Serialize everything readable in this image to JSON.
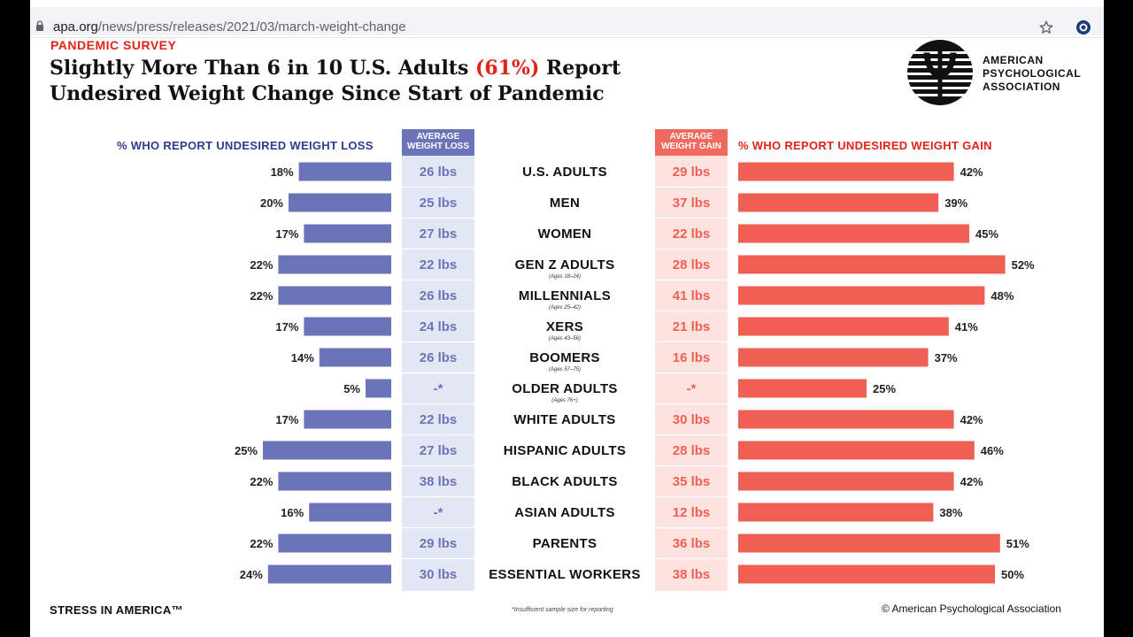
{
  "browser": {
    "url_domain": "apa.org",
    "url_path": "/news/press/releases/2021/03/march-weight-change"
  },
  "header": {
    "kicker": "PANDEMIC SURVEY",
    "title_line1_pre": "Slightly More Than 6 in 10 U.S. Adults ",
    "title_line1_highlight": "(61%)",
    "title_line1_post": " Report",
    "title_line2": "Undesired Weight Change Since Start of Pandemic"
  },
  "logo": {
    "line1": "AMERICAN",
    "line2": "PSYCHOLOGICAL",
    "line3": "ASSOCIATION"
  },
  "columns": {
    "loss_header": "% WHO REPORT UNDESIRED WEIGHT LOSS",
    "avg_loss_header_line1": "AVERAGE",
    "avg_loss_header_line2": "WEIGHT LOSS",
    "avg_gain_header_line1": "AVERAGE",
    "avg_gain_header_line2": "WEIGHT GAIN",
    "gain_header": "% WHO REPORT UNDESIRED WEIGHT GAIN"
  },
  "colors": {
    "loss_bar": "#6b74b8",
    "gain_bar": "#ef5f54",
    "loss_text": "#6b74b8",
    "gain_text": "#ef5f54",
    "accent_red": "#e2231a",
    "navy": "#2f3b8f"
  },
  "chart_data": {
    "type": "bar",
    "title": "Slightly More Than 6 in 10 U.S. Adults (61%) Report Undesired Weight Change Since Start of Pandemic",
    "categories": [
      "U.S. ADULTS",
      "MEN",
      "WOMEN",
      "GEN Z ADULTS",
      "MILLENNIALS",
      "XERS",
      "BOOMERS",
      "OLDER ADULTS",
      "WHITE ADULTS",
      "HISPANIC ADULTS",
      "BLACK ADULTS",
      "ASIAN ADULTS",
      "PARENTS",
      "ESSENTIAL WORKERS"
    ],
    "sublabels": [
      "",
      "",
      "",
      "(Ages 18–24)",
      "(Ages 25–42)",
      "(Ages 43–56)",
      "(Ages 57–75)",
      "(Ages 76+)",
      "",
      "",
      "",
      "",
      "",
      ""
    ],
    "series": [
      {
        "name": "% who report undesired weight loss",
        "values": [
          18,
          20,
          17,
          22,
          22,
          17,
          14,
          5,
          17,
          25,
          22,
          16,
          22,
          24
        ]
      },
      {
        "name": "% who report undesired weight gain",
        "values": [
          42,
          39,
          45,
          52,
          48,
          41,
          37,
          25,
          42,
          46,
          42,
          38,
          51,
          50
        ]
      }
    ],
    "avg_weight_loss": [
      "26 lbs",
      "25 lbs",
      "27 lbs",
      "22 lbs",
      "26 lbs",
      "24 lbs",
      "26 lbs",
      "-*",
      "22 lbs",
      "27 lbs",
      "38 lbs",
      "-*",
      "29 lbs",
      "30 lbs"
    ],
    "avg_weight_gain": [
      "29 lbs",
      "37 lbs",
      "22 lbs",
      "28 lbs",
      "41 lbs",
      "21 lbs",
      "16 lbs",
      "-*",
      "30 lbs",
      "28 lbs",
      "35 lbs",
      "12 lbs",
      "36 lbs",
      "38 lbs"
    ]
  },
  "footer": {
    "left": "STRESS IN AMERICA™",
    "footnote": "*Insufficient sample size for reporting",
    "copyright": "© American Psychological Association"
  }
}
